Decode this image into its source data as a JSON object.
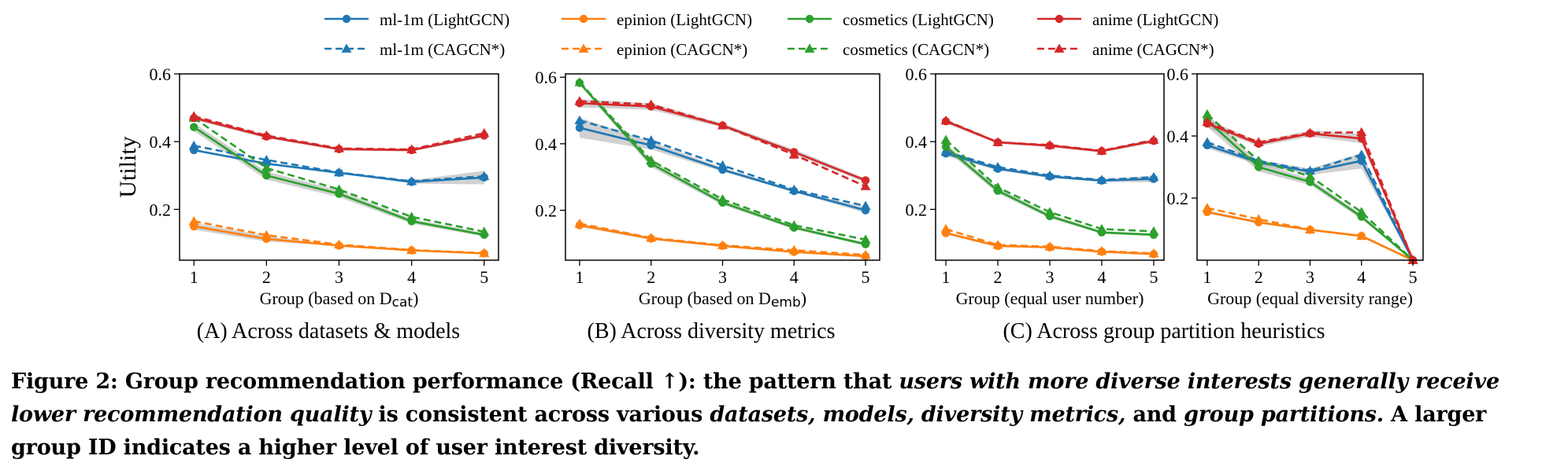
{
  "legend": {
    "entries": [
      {
        "label": "ml-1m (LightGCN)",
        "color": "#1f77b4",
        "style": "solid",
        "marker": "circle"
      },
      {
        "label": "epinion (LightGCN)",
        "color": "#ff7f0e",
        "style": "solid",
        "marker": "circle"
      },
      {
        "label": "cosmetics (LightGCN)",
        "color": "#2ca02c",
        "style": "solid",
        "marker": "circle"
      },
      {
        "label": "anime (LightGCN)",
        "color": "#d62728",
        "style": "solid",
        "marker": "circle"
      },
      {
        "label": "ml-1m (CAGCN*)",
        "color": "#1f77b4",
        "style": "dashed",
        "marker": "triangle"
      },
      {
        "label": "epinion (CAGCN*)",
        "color": "#ff7f0e",
        "style": "dashed",
        "marker": "triangle"
      },
      {
        "label": "cosmetics (CAGCN*)",
        "color": "#2ca02c",
        "style": "dashed",
        "marker": "triangle"
      },
      {
        "label": "anime (CAGCN*)",
        "color": "#d62728",
        "style": "dashed",
        "marker": "triangle"
      }
    ]
  },
  "subtitles": {
    "a": "(A) Across datasets & models",
    "b": "(B) Across diversity metrics",
    "c": "(C) Across group partition heuristics"
  },
  "caption": {
    "p1": "Figure 2: Group recommendation performance (Recall ↑): the pattern that ",
    "i1": "users with more diverse interests generally receive lower recommendation quality",
    "p2": " is consistent across various ",
    "i2": "datasets, models, diversity metrics,",
    "p3": " and ",
    "i3": "group partitions.",
    "p4": " A larger group ID indicates a higher level of user interest diversity."
  },
  "chart_data": [
    {
      "type": "line",
      "panel": "A",
      "ylabel": "Utility",
      "xlabel": "Group (based on D",
      "xlabel_sub": "cat",
      "xlabel_end": ")",
      "x": [
        1,
        2,
        3,
        4,
        5
      ],
      "ylim": [
        0.05,
        0.6
      ],
      "yticks": [
        0.2,
        0.4,
        0.6
      ],
      "series": [
        {
          "name": "ml-1m (LightGCN)",
          "color": "#1f77b4",
          "style": "solid",
          "marker": "circle",
          "values": [
            0.375,
            0.335,
            0.308,
            0.281,
            0.294
          ],
          "band": [
            0,
            0,
            0,
            0.005,
            0.02
          ]
        },
        {
          "name": "ml-1m (CAGCN*)",
          "color": "#1f77b4",
          "style": "dashed",
          "marker": "triangle",
          "values": [
            0.388,
            0.346,
            0.309,
            0.283,
            0.298
          ]
        },
        {
          "name": "epinion (LightGCN)",
          "color": "#ff7f0e",
          "style": "solid",
          "marker": "circle",
          "values": [
            0.15,
            0.113,
            0.093,
            0.079,
            0.07
          ],
          "band": [
            0.01,
            0.008,
            0,
            0,
            0
          ]
        },
        {
          "name": "epinion (CAGCN*)",
          "color": "#ff7f0e",
          "style": "dashed",
          "marker": "triangle",
          "values": [
            0.165,
            0.124,
            0.096,
            0.08,
            0.071
          ]
        },
        {
          "name": "cosmetics (LightGCN)",
          "color": "#2ca02c",
          "style": "solid",
          "marker": "circle",
          "values": [
            0.443,
            0.3,
            0.246,
            0.165,
            0.125
          ],
          "band": [
            0.012,
            0.012,
            0.01,
            0.007,
            0.005
          ]
        },
        {
          "name": "cosmetics (CAGCN*)",
          "color": "#2ca02c",
          "style": "dashed",
          "marker": "triangle",
          "values": [
            0.47,
            0.322,
            0.259,
            0.178,
            0.134
          ]
        },
        {
          "name": "anime (LightGCN)",
          "color": "#d62728",
          "style": "solid",
          "marker": "circle",
          "values": [
            0.47,
            0.415,
            0.378,
            0.375,
            0.418
          ],
          "band": [
            0.006,
            0.005,
            0.004,
            0.004,
            0.006
          ]
        },
        {
          "name": "anime (CAGCN*)",
          "color": "#d62728",
          "style": "dashed",
          "marker": "triangle",
          "values": [
            0.475,
            0.418,
            0.38,
            0.377,
            0.425
          ]
        }
      ]
    },
    {
      "type": "line",
      "panel": "B",
      "xlabel": "Group (based on D",
      "xlabel_sub": "emb",
      "xlabel_end": ")",
      "x": [
        1,
        2,
        3,
        4,
        5
      ],
      "ylim": [
        0.05,
        0.61
      ],
      "yticks": [
        0.2,
        0.4,
        0.6
      ],
      "series": [
        {
          "name": "ml-1m (LightGCN)",
          "color": "#1f77b4",
          "style": "solid",
          "marker": "circle",
          "values": [
            0.448,
            0.395,
            0.322,
            0.258,
            0.2
          ],
          "band": [
            0.03,
            0.012,
            0.006,
            0.004,
            0.008
          ]
        },
        {
          "name": "ml-1m (CAGCN*)",
          "color": "#1f77b4",
          "style": "dashed",
          "marker": "triangle",
          "values": [
            0.47,
            0.41,
            0.335,
            0.262,
            0.213
          ]
        },
        {
          "name": "epinion (LightGCN)",
          "color": "#ff7f0e",
          "style": "solid",
          "marker": "circle",
          "values": [
            0.155,
            0.115,
            0.093,
            0.075,
            0.062
          ],
          "band": [
            0.005,
            0.004,
            0.003,
            0.003,
            0.003
          ]
        },
        {
          "name": "epinion (CAGCN*)",
          "color": "#ff7f0e",
          "style": "dashed",
          "marker": "triangle",
          "values": [
            0.16,
            0.117,
            0.095,
            0.08,
            0.066
          ]
        },
        {
          "name": "cosmetics (LightGCN)",
          "color": "#2ca02c",
          "style": "solid",
          "marker": "circle",
          "values": [
            0.583,
            0.34,
            0.223,
            0.148,
            0.098
          ],
          "band": [
            0.005,
            0.01,
            0.007,
            0.005,
            0.005
          ]
        },
        {
          "name": "cosmetics (CAGCN*)",
          "color": "#2ca02c",
          "style": "dashed",
          "marker": "triangle",
          "values": [
            0.585,
            0.35,
            0.233,
            0.155,
            0.112
          ]
        },
        {
          "name": "anime (LightGCN)",
          "color": "#d62728",
          "style": "solid",
          "marker": "circle",
          "values": [
            0.522,
            0.512,
            0.455,
            0.375,
            0.29
          ],
          "band": [
            0.012,
            0.01,
            0.006,
            0.008,
            0.006
          ]
        },
        {
          "name": "anime (CAGCN*)",
          "color": "#d62728",
          "style": "dashed",
          "marker": "triangle",
          "values": [
            0.528,
            0.518,
            0.455,
            0.367,
            0.272
          ]
        }
      ]
    },
    {
      "type": "line",
      "panel": "C1",
      "xlabel": "Group (equal user number)",
      "x": [
        1,
        2,
        3,
        4,
        5
      ],
      "ylim": [
        0.05,
        0.6
      ],
      "yticks": [
        0.2,
        0.4,
        0.6
      ],
      "series": [
        {
          "name": "ml-1m (LightGCN)",
          "color": "#1f77b4",
          "style": "solid",
          "marker": "circle",
          "values": [
            0.365,
            0.32,
            0.297,
            0.285,
            0.29
          ],
          "band": [
            0.008,
            0.005,
            0.004,
            0.004,
            0.01
          ]
        },
        {
          "name": "ml-1m (CAGCN*)",
          "color": "#1f77b4",
          "style": "dashed",
          "marker": "triangle",
          "values": [
            0.37,
            0.325,
            0.3,
            0.287,
            0.295
          ]
        },
        {
          "name": "epinion (LightGCN)",
          "color": "#ff7f0e",
          "style": "solid",
          "marker": "circle",
          "values": [
            0.13,
            0.092,
            0.088,
            0.075,
            0.068
          ],
          "band": [
            0.004,
            0.003,
            0.003,
            0.003,
            0.002
          ]
        },
        {
          "name": "epinion (CAGCN*)",
          "color": "#ff7f0e",
          "style": "dashed",
          "marker": "triangle",
          "values": [
            0.142,
            0.095,
            0.09,
            0.077,
            0.07
          ]
        },
        {
          "name": "cosmetics (LightGCN)",
          "color": "#2ca02c",
          "style": "solid",
          "marker": "circle",
          "values": [
            0.385,
            0.255,
            0.18,
            0.132,
            0.125
          ],
          "band": [
            0.01,
            0.008,
            0.006,
            0.004,
            0.004
          ]
        },
        {
          "name": "cosmetics (CAGCN*)",
          "color": "#2ca02c",
          "style": "dashed",
          "marker": "triangle",
          "values": [
            0.405,
            0.265,
            0.192,
            0.142,
            0.135
          ]
        },
        {
          "name": "anime (LightGCN)",
          "color": "#d62728",
          "style": "solid",
          "marker": "circle",
          "values": [
            0.46,
            0.398,
            0.388,
            0.372,
            0.402
          ],
          "band": [
            0.006,
            0.004,
            0.004,
            0.004,
            0.005
          ]
        },
        {
          "name": "anime (CAGCN*)",
          "color": "#d62728",
          "style": "dashed",
          "marker": "triangle",
          "values": [
            0.462,
            0.398,
            0.39,
            0.373,
            0.405
          ]
        }
      ]
    },
    {
      "type": "line",
      "panel": "C2",
      "xlabel": "Group (equal diversity range)",
      "x": [
        1,
        2,
        3,
        4,
        5
      ],
      "ylim": [
        0,
        0.6
      ],
      "yticks": [
        0.2,
        0.4,
        0.6
      ],
      "series": [
        {
          "name": "ml-1m (LightGCN)",
          "color": "#1f77b4",
          "style": "solid",
          "marker": "circle",
          "values": [
            0.37,
            0.315,
            0.285,
            0.32,
            0.0
          ],
          "band": [
            0.01,
            0.008,
            0.01,
            0.025,
            0
          ]
        },
        {
          "name": "ml-1m (CAGCN*)",
          "color": "#1f77b4",
          "style": "dashed",
          "marker": "triangle",
          "values": [
            0.38,
            0.32,
            0.288,
            0.34,
            0.0
          ]
        },
        {
          "name": "epinion (LightGCN)",
          "color": "#ff7f0e",
          "style": "solid",
          "marker": "circle",
          "values": [
            0.155,
            0.122,
            0.098,
            0.078,
            0.0
          ],
          "band": [
            0.005,
            0.004,
            0.003,
            0.003,
            0
          ]
        },
        {
          "name": "epinion (CAGCN*)",
          "color": "#ff7f0e",
          "style": "dashed",
          "marker": "triangle",
          "values": [
            0.168,
            0.132,
            0.098,
            0.078,
            0.0
          ]
        },
        {
          "name": "cosmetics (LightGCN)",
          "color": "#2ca02c",
          "style": "solid",
          "marker": "circle",
          "values": [
            0.45,
            0.3,
            0.252,
            0.14,
            0.0
          ],
          "band": [
            0.02,
            0.015,
            0.01,
            0.008,
            0
          ]
        },
        {
          "name": "cosmetics (CAGCN*)",
          "color": "#2ca02c",
          "style": "dashed",
          "marker": "triangle",
          "values": [
            0.47,
            0.32,
            0.27,
            0.155,
            0.0
          ]
        },
        {
          "name": "anime (LightGCN)",
          "color": "#d62728",
          "style": "solid",
          "marker": "circle",
          "values": [
            0.44,
            0.375,
            0.408,
            0.392,
            0.0
          ],
          "band": [
            0.012,
            0.008,
            0.01,
            0.015,
            0
          ]
        },
        {
          "name": "anime (CAGCN*)",
          "color": "#d62728",
          "style": "dashed",
          "marker": "triangle",
          "values": [
            0.445,
            0.38,
            0.41,
            0.412,
            0.0
          ]
        }
      ]
    }
  ]
}
